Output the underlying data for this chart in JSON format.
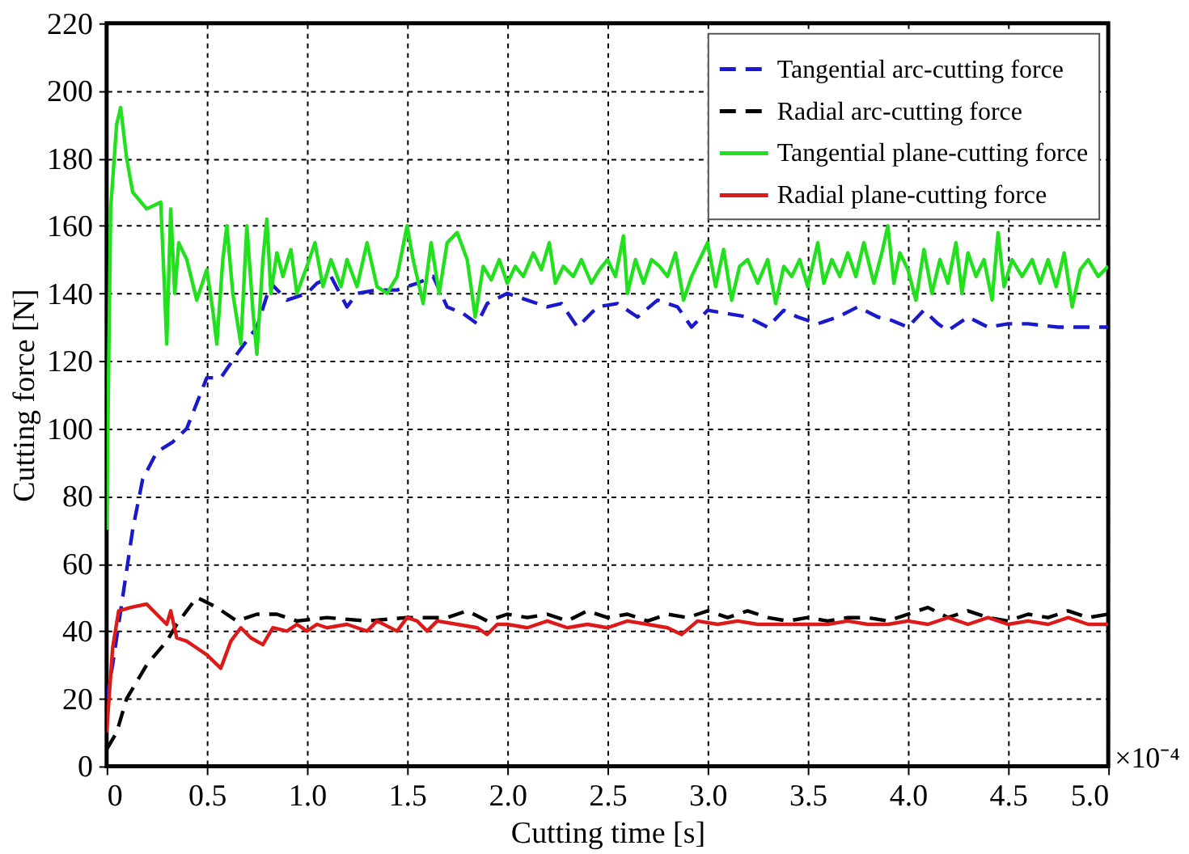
{
  "chart_data": {
    "type": "line",
    "xlabel": "Cutting time [s]",
    "ylabel": "Cutting force [N]",
    "xlim": [
      0,
      5.0
    ],
    "xticks": [
      {
        "value": 0,
        "label": "0"
      },
      {
        "value": 0.5,
        "label": "0.5"
      },
      {
        "value": 1,
        "label": "1.0"
      },
      {
        "value": 1.5,
        "label": "1.5"
      },
      {
        "value": 2,
        "label": "2.0"
      },
      {
        "value": 2.5,
        "label": "2.5"
      },
      {
        "value": 3,
        "label": "3.0"
      },
      {
        "value": 3.5,
        "label": "3.5"
      },
      {
        "value": 4,
        "label": "4.0"
      },
      {
        "value": 4.5,
        "label": "4.5"
      },
      {
        "value": 5,
        "label": "5.0"
      }
    ],
    "ylim": [
      0,
      220
    ],
    "yticks": [
      0,
      20,
      40,
      60,
      80,
      100,
      120,
      140,
      160,
      180,
      200,
      220
    ],
    "grid": true,
    "legend": "top right",
    "annotations": [
      "×10⁻⁴"
    ],
    "series": [
      {
        "name": "Tangential arc-cutting force",
        "color": "#1a1acc",
        "line_style": "dashed",
        "x": [
          0,
          0.03,
          0.08,
          0.13,
          0.18,
          0.25,
          0.33,
          0.4,
          0.5,
          0.57,
          0.65,
          0.75,
          0.82,
          0.9,
          1.0,
          1.05,
          1.12,
          1.2,
          1.25,
          1.35,
          1.45,
          1.55,
          1.63,
          1.7,
          1.78,
          1.85,
          1.9,
          2.0,
          2.1,
          2.2,
          2.27,
          2.35,
          2.45,
          2.55,
          2.65,
          2.75,
          2.85,
          2.92,
          3.0,
          3.1,
          3.2,
          3.3,
          3.38,
          3.45,
          3.55,
          3.65,
          3.75,
          3.85,
          3.92,
          4.0,
          4.08,
          4.15,
          4.2,
          4.3,
          4.4,
          4.5,
          4.6,
          4.75,
          5.0
        ],
        "values": [
          20,
          30,
          50,
          70,
          85,
          93,
          96,
          100,
          115,
          115,
          122,
          130,
          143,
          138,
          140,
          143,
          145,
          136,
          140,
          141,
          141,
          143,
          145,
          136,
          134,
          131,
          137,
          140,
          138,
          136,
          137,
          130,
          136,
          137,
          133,
          138,
          136,
          130,
          135,
          134,
          133,
          130,
          135,
          133,
          131,
          133,
          136,
          133,
          132,
          130,
          135,
          131,
          129,
          133,
          130,
          131,
          131,
          130,
          130
        ]
      },
      {
        "name": "Radial arc-cutting force",
        "color": "#000000",
        "line_style": "dashed",
        "x": [
          0,
          0.05,
          0.1,
          0.2,
          0.3,
          0.35,
          0.45,
          0.55,
          0.65,
          0.75,
          0.85,
          0.95,
          1.1,
          1.3,
          1.5,
          1.7,
          1.8,
          1.9,
          2.0,
          2.1,
          2.2,
          2.3,
          2.4,
          2.5,
          2.6,
          2.7,
          2.8,
          2.9,
          3.0,
          3.1,
          3.2,
          3.3,
          3.4,
          3.5,
          3.6,
          3.7,
          3.8,
          3.9,
          4.0,
          4.1,
          4.2,
          4.3,
          4.4,
          4.5,
          4.6,
          4.7,
          4.8,
          4.9,
          5.0
        ],
        "values": [
          5,
          10,
          20,
          30,
          37,
          42,
          50,
          47,
          43,
          45,
          45,
          43,
          44,
          43,
          44,
          44,
          46,
          43,
          45,
          44,
          45,
          43,
          46,
          44,
          45,
          43,
          45,
          44,
          46,
          44,
          46,
          44,
          43,
          44,
          43,
          44,
          44,
          43,
          45,
          47,
          44,
          46,
          44,
          43,
          45,
          44,
          46,
          44,
          45
        ]
      },
      {
        "name": "Tangential plane-cutting force",
        "color": "#22e01e",
        "line_style": "solid",
        "x": [
          0.0,
          0.02,
          0.05,
          0.07,
          0.1,
          0.13,
          0.2,
          0.27,
          0.29,
          0.3,
          0.32,
          0.34,
          0.36,
          0.4,
          0.45,
          0.5,
          0.53,
          0.55,
          0.58,
          0.6,
          0.63,
          0.67,
          0.7,
          0.73,
          0.75,
          0.78,
          0.8,
          0.82,
          0.85,
          0.88,
          0.92,
          0.95,
          1.0,
          1.04,
          1.08,
          1.12,
          1.17,
          1.2,
          1.25,
          1.3,
          1.35,
          1.4,
          1.45,
          1.5,
          1.53,
          1.58,
          1.62,
          1.66,
          1.7,
          1.75,
          1.8,
          1.84,
          1.88,
          1.92,
          1.96,
          2.0,
          2.04,
          2.08,
          2.13,
          2.17,
          2.21,
          2.24,
          2.28,
          2.33,
          2.37,
          2.42,
          2.46,
          2.5,
          2.54,
          2.58,
          2.6,
          2.64,
          2.68,
          2.72,
          2.76,
          2.8,
          2.84,
          2.88,
          2.92,
          2.96,
          3.0,
          3.04,
          3.08,
          3.12,
          3.16,
          3.2,
          3.25,
          3.3,
          3.34,
          3.38,
          3.42,
          3.46,
          3.5,
          3.55,
          3.58,
          3.62,
          3.66,
          3.7,
          3.74,
          3.78,
          3.83,
          3.87,
          3.9,
          3.93,
          3.96,
          4.0,
          4.04,
          4.08,
          4.12,
          4.16,
          4.2,
          4.24,
          4.27,
          4.3,
          4.34,
          4.38,
          4.42,
          4.45,
          4.48,
          4.52,
          4.57,
          4.62,
          4.66,
          4.7,
          4.74,
          4.78,
          4.82,
          4.86,
          4.9,
          4.95,
          5.0
        ],
        "values": [
          70,
          165,
          190,
          195,
          180,
          170,
          165,
          167,
          140,
          125,
          165,
          140,
          155,
          150,
          138,
          147,
          135,
          125,
          150,
          160,
          140,
          125,
          160,
          135,
          122,
          150,
          162,
          140,
          152,
          145,
          153,
          140,
          148,
          155,
          142,
          150,
          142,
          150,
          142,
          155,
          142,
          140,
          145,
          160,
          150,
          137,
          155,
          140,
          155,
          158,
          150,
          133,
          148,
          144,
          150,
          143,
          148,
          145,
          152,
          147,
          155,
          143,
          148,
          145,
          150,
          143,
          147,
          150,
          145,
          157,
          140,
          150,
          143,
          150,
          148,
          145,
          152,
          138,
          145,
          150,
          155,
          142,
          153,
          138,
          148,
          150,
          143,
          150,
          137,
          148,
          145,
          150,
          142,
          155,
          143,
          150,
          145,
          152,
          145,
          155,
          143,
          152,
          160,
          143,
          152,
          147,
          138,
          153,
          140,
          150,
          143,
          155,
          140,
          152,
          145,
          150,
          138,
          158,
          142,
          150,
          145,
          150,
          143,
          150,
          142,
          152,
          136,
          147,
          150,
          145,
          148
        ]
      },
      {
        "name": "Radial plane-cutting force",
        "color": "#dd1a1a",
        "line_style": "solid",
        "x": [
          0,
          0.03,
          0.06,
          0.12,
          0.2,
          0.25,
          0.3,
          0.32,
          0.35,
          0.4,
          0.45,
          0.5,
          0.57,
          0.62,
          0.67,
          0.72,
          0.78,
          0.83,
          0.9,
          0.95,
          1.0,
          1.05,
          1.1,
          1.2,
          1.3,
          1.35,
          1.45,
          1.5,
          1.55,
          1.6,
          1.65,
          1.75,
          1.85,
          1.9,
          1.95,
          2.0,
          2.1,
          2.2,
          2.3,
          2.4,
          2.5,
          2.6,
          2.7,
          2.8,
          2.87,
          2.95,
          3.05,
          3.15,
          3.25,
          3.4,
          3.5,
          3.6,
          3.7,
          3.8,
          3.9,
          4.0,
          4.1,
          4.2,
          4.3,
          4.4,
          4.5,
          4.6,
          4.7,
          4.8,
          4.9,
          5.0
        ],
        "values": [
          10,
          35,
          46,
          47,
          48,
          45,
          42,
          46,
          38,
          37,
          35,
          33,
          29,
          37,
          41,
          38,
          36,
          41,
          40,
          42,
          40,
          42,
          41,
          42,
          40,
          43,
          40,
          44,
          43,
          40,
          43,
          42,
          41,
          39,
          42,
          42,
          41,
          43,
          41,
          42,
          41,
          43,
          42,
          41,
          39,
          43,
          42,
          43,
          42,
          42,
          42,
          42,
          43,
          42,
          42,
          43,
          42,
          44,
          42,
          44,
          42,
          43,
          42,
          44,
          42,
          42
        ]
      }
    ]
  }
}
